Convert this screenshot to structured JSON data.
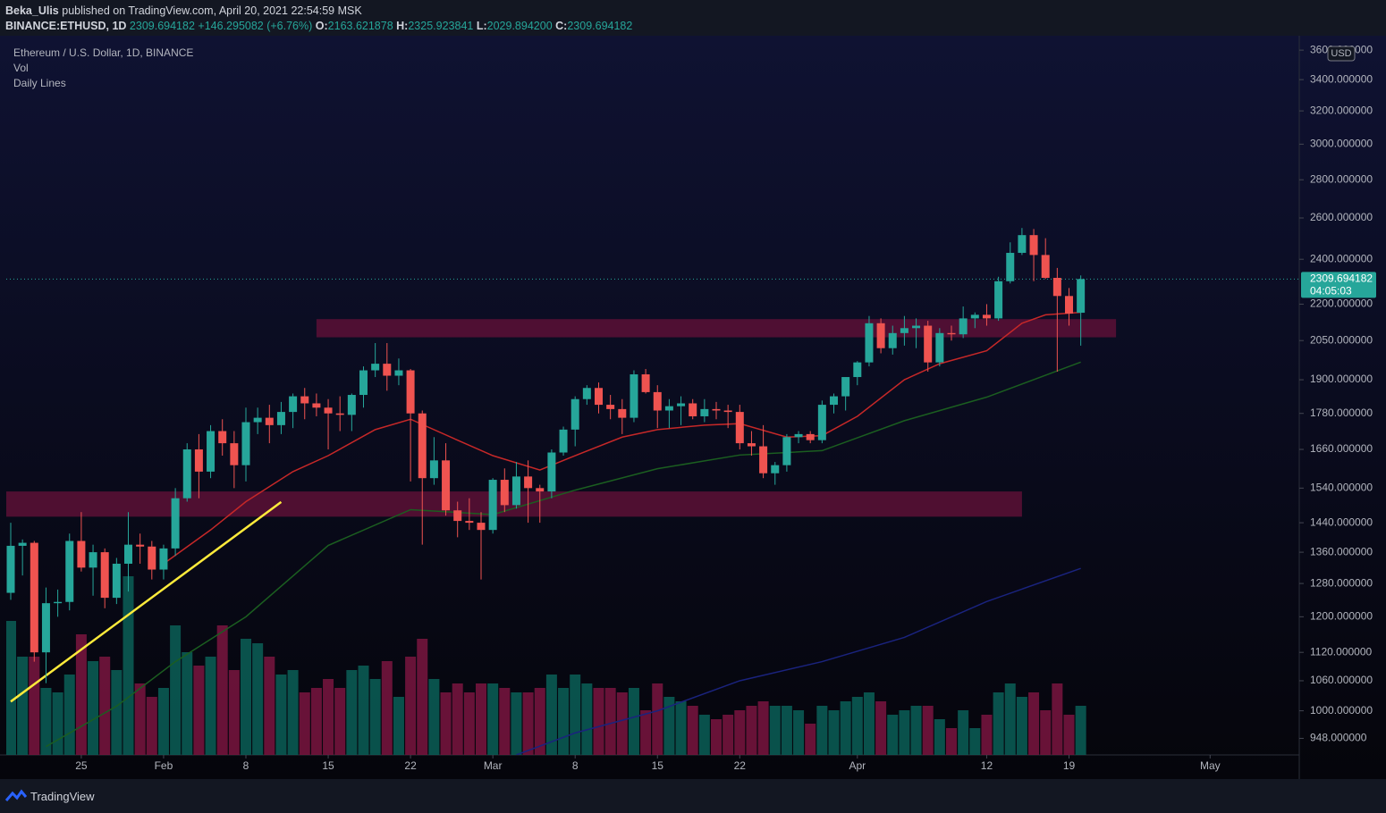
{
  "header": {
    "author": "Beka_Ulis",
    "published": "published on TradingView.com, April 20, 2021 22:54:59 MSK",
    "symbol": "BINANCE:ETHUSD, 1D",
    "last": "2309.694182",
    "change": "+146.295082 (+6.76%)",
    "o_label": "O:",
    "o": "2163.621878",
    "h_label": "H:",
    "h": "2325.923841",
    "l_label": "L:",
    "l": "2029.894200",
    "c_label": "C:",
    "c": "2309.694182"
  },
  "footer": "TradingView",
  "chart_data": {
    "type": "candlestick",
    "title": "Ethereum / U.S. Dollar, 1D, BINANCE",
    "indicators": [
      "Vol",
      "Daily Lines"
    ],
    "currency": "USD",
    "log_scale": true,
    "up_color": "#26a69a",
    "down_color": "#ef5350",
    "volume_up_color": "#0b5f57",
    "volume_down_color": "#7a1540",
    "ylim": [
      918,
      3670
    ],
    "yticks": [
      {
        "value": 948,
        "label": "948.000000"
      },
      {
        "value": 1000,
        "label": "1000.000000"
      },
      {
        "value": 1060,
        "label": "1060.000000"
      },
      {
        "value": 1120,
        "label": "1120.000000"
      },
      {
        "value": 1200,
        "label": "1200.000000"
      },
      {
        "value": 1280,
        "label": "1280.000000"
      },
      {
        "value": 1360,
        "label": "1360.000000"
      },
      {
        "value": 1440,
        "label": "1440.000000"
      },
      {
        "value": 1540,
        "label": "1540.000000"
      },
      {
        "value": 1660,
        "label": "1660.000000"
      },
      {
        "value": 1780,
        "label": "1780.000000"
      },
      {
        "value": 1900,
        "label": "1900.000000"
      },
      {
        "value": 2050,
        "label": "2050.000000"
      },
      {
        "value": 2200,
        "label": "2200.000000"
      },
      {
        "value": 2400,
        "label": "2400.000000"
      },
      {
        "value": 2600,
        "label": "2600.000000"
      },
      {
        "value": 2800,
        "label": "2800.000000"
      },
      {
        "value": 3000,
        "label": "3000.000000"
      },
      {
        "value": 3200,
        "label": "3200.000000"
      },
      {
        "value": 3400,
        "label": "3400.000000"
      },
      {
        "value": 3600,
        "label": "3600.000000"
      }
    ],
    "xticks": [
      {
        "value": "Jan 25",
        "label": "25"
      },
      {
        "value": "Feb 1",
        "label": "Feb"
      },
      {
        "value": "Feb 8",
        "label": "8"
      },
      {
        "value": "Feb 15",
        "label": "15"
      },
      {
        "value": "Feb 22",
        "label": "22"
      },
      {
        "value": "Mar 1",
        "label": "Mar"
      },
      {
        "value": "Mar 8",
        "label": "8"
      },
      {
        "value": "Mar 15",
        "label": "15"
      },
      {
        "value": "Mar 22",
        "label": "22"
      },
      {
        "value": "Apr 1",
        "label": "Apr"
      },
      {
        "value": "Apr 12",
        "label": "12"
      },
      {
        "value": "Apr 19",
        "label": "19"
      },
      {
        "value": "May 1",
        "label": "May"
      }
    ],
    "last_price": {
      "value": 2309.694182,
      "label": "2309.694182",
      "countdown": "04:05:03"
    },
    "x": [
      "Jan 19",
      "Jan 20",
      "Jan 21",
      "Jan 22",
      "Jan 23",
      "Jan 24",
      "Jan 25",
      "Jan 26",
      "Jan 27",
      "Jan 28",
      "Jan 29",
      "Jan 30",
      "Jan 31",
      "Feb 1",
      "Feb 2",
      "Feb 3",
      "Feb 4",
      "Feb 5",
      "Feb 6",
      "Feb 7",
      "Feb 8",
      "Feb 9",
      "Feb 10",
      "Feb 11",
      "Feb 12",
      "Feb 13",
      "Feb 14",
      "Feb 15",
      "Feb 16",
      "Feb 17",
      "Feb 18",
      "Feb 19",
      "Feb 20",
      "Feb 21",
      "Feb 22",
      "Feb 23",
      "Feb 24",
      "Feb 25",
      "Feb 26",
      "Feb 27",
      "Feb 28",
      "Mar 1",
      "Mar 2",
      "Mar 3",
      "Mar 4",
      "Mar 5",
      "Mar 6",
      "Mar 7",
      "Mar 8",
      "Mar 9",
      "Mar 10",
      "Mar 11",
      "Mar 12",
      "Mar 13",
      "Mar 14",
      "Mar 15",
      "Mar 16",
      "Mar 17",
      "Mar 18",
      "Mar 19",
      "Mar 20",
      "Mar 21",
      "Mar 22",
      "Mar 23",
      "Mar 24",
      "Mar 25",
      "Mar 26",
      "Mar 27",
      "Mar 28",
      "Mar 29",
      "Mar 30",
      "Mar 31",
      "Apr 1",
      "Apr 2",
      "Apr 3",
      "Apr 4",
      "Apr 5",
      "Apr 6",
      "Apr 7",
      "Apr 8",
      "Apr 9",
      "Apr 10",
      "Apr 11",
      "Apr 12",
      "Apr 13",
      "Apr 14",
      "Apr 15",
      "Apr 16",
      "Apr 17",
      "Apr 18",
      "Apr 19",
      "Apr 20"
    ],
    "open": [
      1257,
      1377,
      1385,
      1120,
      1232,
      1235,
      1390,
      1320,
      1360,
      1245,
      1330,
      1380,
      1375,
      1315,
      1370,
      1510,
      1660,
      1590,
      1720,
      1680,
      1610,
      1750,
      1765,
      1740,
      1785,
      1840,
      1815,
      1800,
      1780,
      1775,
      1845,
      1935,
      1960,
      1915,
      1935,
      1780,
      1570,
      1625,
      1475,
      1445,
      1440,
      1420,
      1565,
      1490,
      1575,
      1540,
      1530,
      1650,
      1725,
      1830,
      1870,
      1810,
      1795,
      1765,
      1920,
      1855,
      1790,
      1805,
      1815,
      1770,
      1795,
      1790,
      1785,
      1680,
      1670,
      1585,
      1610,
      1700,
      1710,
      1690,
      1810,
      1840,
      1910,
      1965,
      2120,
      2020,
      2080,
      2100,
      2110,
      1965,
      2080,
      2075,
      2140,
      2155,
      2140,
      2300,
      2430,
      2515,
      2420,
      2315,
      2235,
      2163.621878
    ],
    "high": [
      1440,
      1394,
      1390,
      1270,
      1265,
      1410,
      1470,
      1380,
      1370,
      1345,
      1470,
      1410,
      1390,
      1380,
      1540,
      1680,
      1710,
      1740,
      1760,
      1720,
      1800,
      1800,
      1810,
      1820,
      1850,
      1870,
      1850,
      1830,
      1840,
      1850,
      1950,
      2040,
      2040,
      1980,
      1940,
      1790,
      1700,
      1680,
      1500,
      1510,
      1470,
      1570,
      1600,
      1620,
      1625,
      1550,
      1660,
      1735,
      1840,
      1880,
      1890,
      1845,
      1830,
      1935,
      1940,
      1880,
      1830,
      1840,
      1830,
      1830,
      1820,
      1810,
      1810,
      1720,
      1740,
      1620,
      1710,
      1720,
      1720,
      1825,
      1850,
      1900,
      1970,
      2150,
      2140,
      2110,
      2150,
      2140,
      2130,
      2100,
      2110,
      2190,
      2165,
      2200,
      2320,
      2480,
      2550,
      2545,
      2500,
      2360,
      2270,
      2325.923841
    ],
    "low": [
      1240,
      1300,
      1100,
      1055,
      1200,
      1215,
      1310,
      1250,
      1220,
      1230,
      1260,
      1330,
      1290,
      1290,
      1350,
      1500,
      1510,
      1570,
      1640,
      1540,
      1560,
      1710,
      1680,
      1710,
      1730,
      1760,
      1770,
      1660,
      1720,
      1720,
      1800,
      1910,
      1860,
      1880,
      1560,
      1380,
      1550,
      1460,
      1400,
      1420,
      1290,
      1410,
      1470,
      1480,
      1440,
      1440,
      1510,
      1640,
      1670,
      1810,
      1780,
      1760,
      1710,
      1750,
      1850,
      1730,
      1730,
      1740,
      1760,
      1750,
      1760,
      1730,
      1660,
      1640,
      1570,
      1550,
      1590,
      1680,
      1680,
      1680,
      1780,
      1790,
      1880,
      1950,
      2000,
      1995,
      2030,
      2020,
      1930,
      1950,
      2050,
      2060,
      2100,
      2110,
      2130,
      2290,
      2420,
      2300,
      2310,
      1930,
      2110,
      2029.8942
    ],
    "close": [
      1377,
      1385,
      1120,
      1232,
      1235,
      1390,
      1320,
      1360,
      1245,
      1330,
      1380,
      1375,
      1315,
      1370,
      1510,
      1660,
      1590,
      1720,
      1680,
      1610,
      1750,
      1765,
      1740,
      1785,
      1840,
      1815,
      1800,
      1780,
      1775,
      1845,
      1935,
      1960,
      1915,
      1935,
      1780,
      1570,
      1625,
      1475,
      1445,
      1440,
      1420,
      1565,
      1490,
      1575,
      1540,
      1530,
      1650,
      1725,
      1830,
      1870,
      1810,
      1795,
      1765,
      1920,
      1855,
      1790,
      1805,
      1815,
      1770,
      1795,
      1790,
      1785,
      1680,
      1670,
      1585,
      1610,
      1700,
      1710,
      1690,
      1810,
      1840,
      1910,
      1965,
      2120,
      2020,
      2080,
      2100,
      2110,
      1965,
      2080,
      2075,
      2140,
      2155,
      2140,
      2300,
      2430,
      2515,
      2420,
      2315,
      2235,
      2160,
      2309.694182
    ],
    "volume": [
      150,
      110,
      110,
      75,
      70,
      90,
      135,
      105,
      110,
      95,
      200,
      80,
      65,
      75,
      145,
      115,
      100,
      110,
      145,
      95,
      130,
      125,
      110,
      90,
      95,
      70,
      75,
      85,
      75,
      95,
      100,
      85,
      105,
      65,
      110,
      130,
      85,
      70,
      80,
      70,
      80,
      80,
      75,
      70,
      70,
      75,
      90,
      75,
      90,
      80,
      75,
      75,
      70,
      75,
      50,
      80,
      65,
      60,
      55,
      45,
      40,
      45,
      50,
      55,
      60,
      55,
      55,
      50,
      35,
      55,
      50,
      60,
      65,
      70,
      60,
      45,
      50,
      55,
      55,
      40,
      30,
      50,
      30,
      45,
      70,
      80,
      65,
      70,
      50,
      80,
      45,
      55
    ],
    "volume_ylim": [
      0,
      200
    ],
    "lines": [
      {
        "color": "#c62828",
        "x": [
          "Feb 1",
          "Feb 5",
          "Feb 8",
          "Feb 12",
          "Feb 15",
          "Feb 19",
          "Feb 22",
          "Feb 26",
          "Mar 1",
          "Mar 5",
          "Mar 8",
          "Mar 12",
          "Mar 15",
          "Mar 19",
          "Mar 22",
          "Mar 26",
          "Mar 29",
          "Apr 1",
          "Apr 5",
          "Apr 8",
          "Apr 12",
          "Apr 15",
          "Apr 17",
          "Apr 20"
        ],
        "values": [
          1330,
          1420,
          1500,
          1590,
          1640,
          1725,
          1760,
          1690,
          1640,
          1595,
          1640,
          1700,
          1725,
          1740,
          1745,
          1700,
          1705,
          1770,
          1900,
          1960,
          2010,
          2120,
          2155,
          2165
        ]
      },
      {
        "color": "#1b5e20",
        "x": [
          "Jan 22",
          "Jan 28",
          "Feb 2",
          "Feb 8",
          "Feb 15",
          "Feb 22",
          "Mar 1",
          "Mar 8",
          "Mar 15",
          "Mar 22",
          "Mar 29",
          "Apr 5",
          "Apr 12",
          "Apr 20"
        ],
        "values": [
          933,
          1009,
          1100,
          1200,
          1378,
          1477,
          1463,
          1534,
          1599,
          1642,
          1656,
          1755,
          1837,
          1966
        ]
      },
      {
        "color": "#1a237e",
        "x": [
          "Mar 3",
          "Mar 8",
          "Mar 15",
          "Mar 22",
          "Mar 29",
          "Apr 5",
          "Apr 12",
          "Apr 20"
        ],
        "values": [
          918,
          958,
          1000,
          1060,
          1100,
          1153,
          1236,
          1318
        ]
      }
    ],
    "trendline": {
      "color": "#ffeb3b",
      "x": [
        "Jan 19",
        "Feb 11"
      ],
      "values": [
        1018,
        1499
      ]
    },
    "zones": [
      {
        "color": "#5c1036",
        "x": [
          "Feb 14",
          "Apr 23"
        ],
        "values": [
          2063,
          2137
        ]
      },
      {
        "color": "#5c1036",
        "x": [
          "Jan 18",
          "Apr 15"
        ],
        "values": [
          1457,
          1530
        ]
      }
    ]
  }
}
